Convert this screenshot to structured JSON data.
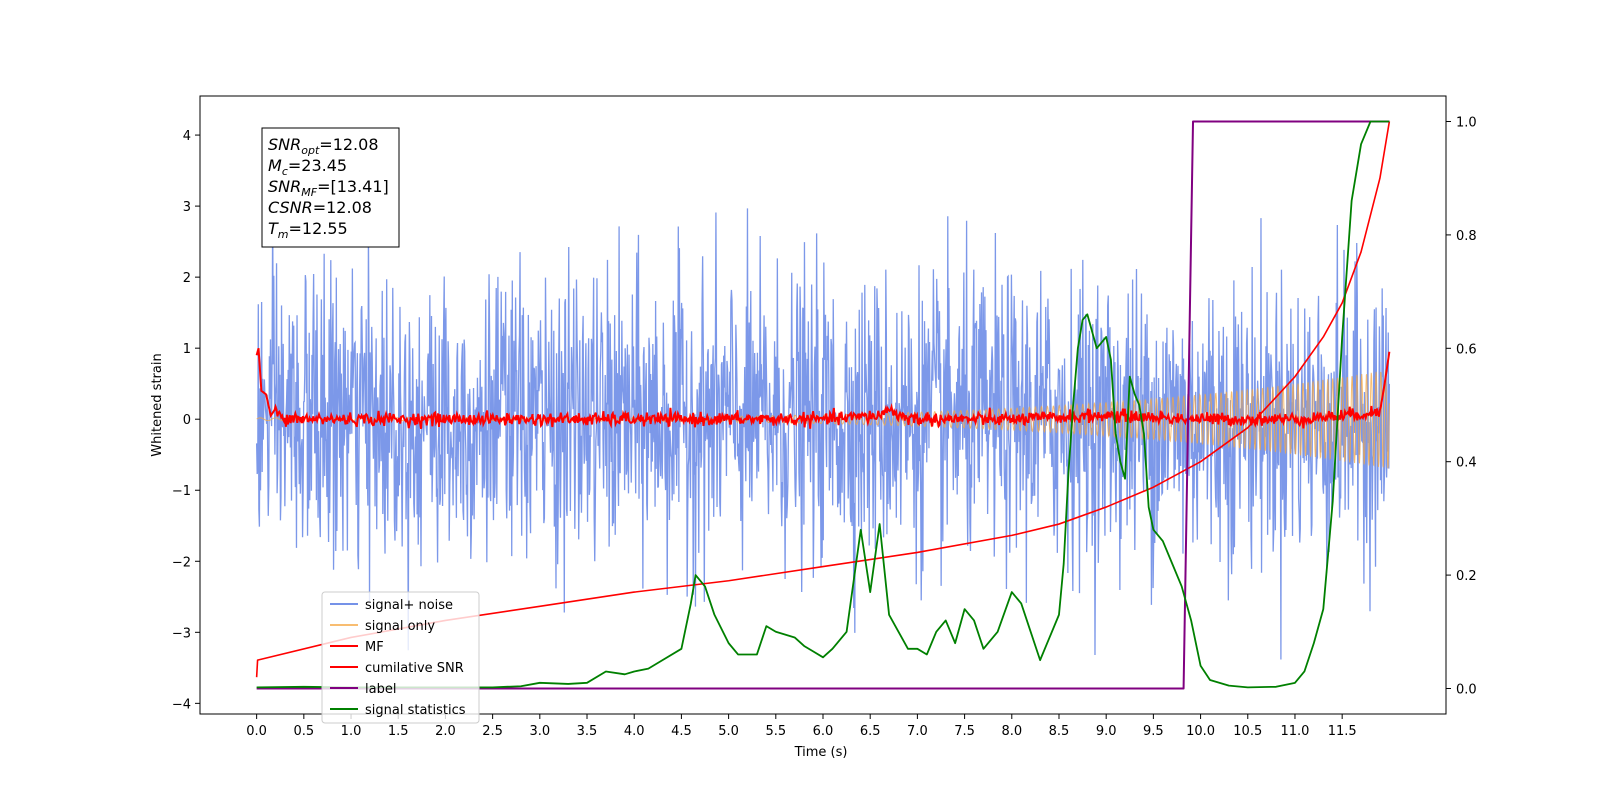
{
  "chart_data": {
    "type": "line",
    "title": "",
    "xlabel": "Time (s)",
    "ylabel": "Whitened strain",
    "xlim": [
      -0.6,
      12.6
    ],
    "ylim_left": [
      -4.15,
      4.55
    ],
    "ylim_right": [
      -0.045,
      1.045
    ],
    "x_ticks": [
      0.0,
      0.5,
      1.0,
      1.5,
      2.0,
      2.5,
      3.0,
      3.5,
      4.0,
      4.5,
      5.0,
      5.5,
      6.0,
      6.5,
      7.0,
      7.5,
      8.0,
      8.5,
      9.0,
      9.5,
      10.0,
      10.5,
      11.0,
      11.5
    ],
    "x_tick_labels": [
      "0.0",
      "0.5",
      "1.0",
      "1.5",
      "2.0",
      "2.5",
      "3.0",
      "3.5",
      "4.0",
      "4.5",
      "5.0",
      "5.5",
      "6.0",
      "6.5",
      "7.0",
      "7.5",
      "8.0",
      "8.5",
      "9.0",
      "9.5",
      "10.0",
      "10.5",
      "11.0",
      "11.5"
    ],
    "y_ticks_left": [
      -4,
      -3,
      -2,
      -1,
      0,
      1,
      2,
      3,
      4
    ],
    "y_tick_labels_left": [
      "−4",
      "−3",
      "−2",
      "−1",
      "0",
      "1",
      "2",
      "3",
      "4"
    ],
    "y_ticks_right": [
      0.0,
      0.2,
      0.4,
      0.6,
      0.8,
      1.0
    ],
    "y_tick_labels_right": [
      "0.0",
      "0.2",
      "0.4",
      "0.6",
      "0.8",
      "1.0"
    ],
    "grid": false,
    "legend_position": "lower-left",
    "annotation": {
      "lines": [
        {
          "base": "SNR",
          "sub": "opt",
          "rest": "=12.08"
        },
        {
          "base": "M",
          "sub": "c",
          "rest": "=23.45"
        },
        {
          "base": "SNR",
          "sub": "MF",
          "rest": "=[13.41]"
        },
        {
          "base": "CSNR",
          "sub": "",
          "rest": "=12.08"
        },
        {
          "base": "T",
          "sub": "m",
          "rest": "=12.55"
        }
      ]
    },
    "series": [
      {
        "name": "signal+ noise",
        "color": "#7592e8",
        "axis": "left",
        "x_range": [
          0.0,
          12.0
        ],
        "std": 1.0,
        "y_range_observed": [
          -3.75,
          4.15
        ],
        "samples": 2048
      },
      {
        "name": "signal only",
        "color": "#f5a742",
        "axis": "left",
        "x_range": [
          0.0,
          12.0
        ],
        "amplitude_start": 0.02,
        "amplitude_end": 0.7
      },
      {
        "name": "MF",
        "color": "#ff0000",
        "axis": "left",
        "x": [
          0.0,
          0.02,
          0.05,
          0.1,
          0.15,
          0.2,
          0.3,
          0.4,
          0.5,
          0.75,
          1.0,
          2.0,
          3.0,
          4.0,
          5.0,
          6.0,
          6.6,
          6.7,
          6.8,
          7.0,
          8.0,
          9.0,
          10.0,
          11.0,
          11.5,
          11.9,
          11.95,
          12.0
        ],
        "y": [
          0.9,
          1.0,
          0.4,
          0.35,
          0.05,
          0.15,
          -0.05,
          0.02,
          0.0,
          0.0,
          0.0,
          0.0,
          0.0,
          0.0,
          0.0,
          0.0,
          0.05,
          0.15,
          0.05,
          0.0,
          0.0,
          0.05,
          0.0,
          0.0,
          0.05,
          0.1,
          0.5,
          0.95
        ]
      },
      {
        "name": "cumilative SNR",
        "color": "#ff0000",
        "axis": "right",
        "x": [
          0.0,
          0.01,
          1.0,
          2.0,
          3.0,
          4.0,
          5.0,
          6.0,
          7.0,
          8.0,
          8.5,
          9.0,
          9.5,
          10.0,
          10.5,
          11.0,
          11.3,
          11.5,
          11.7,
          11.9,
          12.0
        ],
        "y": [
          0.02,
          0.05,
          0.09,
          0.12,
          0.145,
          0.17,
          0.19,
          0.215,
          0.24,
          0.27,
          0.29,
          0.32,
          0.355,
          0.4,
          0.46,
          0.55,
          0.62,
          0.68,
          0.77,
          0.9,
          1.0
        ]
      },
      {
        "name": "label",
        "color": "#800080",
        "axis": "right",
        "x": [
          0.0,
          9.82,
          9.92,
          12.0
        ],
        "y": [
          0.0,
          0.0,
          1.0,
          1.0
        ]
      },
      {
        "name": "signal statistics",
        "color": "#008000",
        "axis": "right",
        "x": [
          0.0,
          0.5,
          1.0,
          1.5,
          2.0,
          2.5,
          2.8,
          3.0,
          3.3,
          3.5,
          3.7,
          3.9,
          4.0,
          4.15,
          4.3,
          4.5,
          4.6,
          4.65,
          4.75,
          4.85,
          5.0,
          5.1,
          5.3,
          5.4,
          5.5,
          5.7,
          5.8,
          5.9,
          6.0,
          6.1,
          6.25,
          6.4,
          6.5,
          6.6,
          6.7,
          6.8,
          6.9,
          7.0,
          7.1,
          7.2,
          7.3,
          7.4,
          7.5,
          7.6,
          7.7,
          7.85,
          8.0,
          8.1,
          8.2,
          8.3,
          8.4,
          8.5,
          8.55,
          8.6,
          8.65,
          8.7,
          8.75,
          8.8,
          8.85,
          8.9,
          9.0,
          9.05,
          9.1,
          9.15,
          9.2,
          9.25,
          9.3,
          9.35,
          9.4,
          9.45,
          9.5,
          9.6,
          9.7,
          9.8,
          9.9,
          10.0,
          10.1,
          10.3,
          10.5,
          10.8,
          11.0,
          11.1,
          11.2,
          11.3,
          11.4,
          11.5,
          11.6,
          11.7,
          11.8,
          11.9,
          12.0
        ],
        "y": [
          0.002,
          0.003,
          0.002,
          0.002,
          0.002,
          0.002,
          0.004,
          0.01,
          0.008,
          0.01,
          0.03,
          0.025,
          0.03,
          0.035,
          0.05,
          0.07,
          0.15,
          0.2,
          0.18,
          0.13,
          0.08,
          0.06,
          0.06,
          0.11,
          0.1,
          0.09,
          0.075,
          0.065,
          0.055,
          0.07,
          0.1,
          0.28,
          0.17,
          0.29,
          0.13,
          0.1,
          0.07,
          0.07,
          0.06,
          0.1,
          0.12,
          0.08,
          0.14,
          0.12,
          0.07,
          0.1,
          0.17,
          0.15,
          0.1,
          0.05,
          0.09,
          0.13,
          0.22,
          0.38,
          0.5,
          0.6,
          0.65,
          0.66,
          0.63,
          0.6,
          0.62,
          0.58,
          0.45,
          0.4,
          0.37,
          0.55,
          0.52,
          0.5,
          0.45,
          0.32,
          0.28,
          0.26,
          0.22,
          0.18,
          0.12,
          0.04,
          0.015,
          0.005,
          0.002,
          0.003,
          0.01,
          0.03,
          0.08,
          0.14,
          0.33,
          0.62,
          0.86,
          0.96,
          1.0,
          1.0,
          1.0
        ]
      }
    ]
  }
}
